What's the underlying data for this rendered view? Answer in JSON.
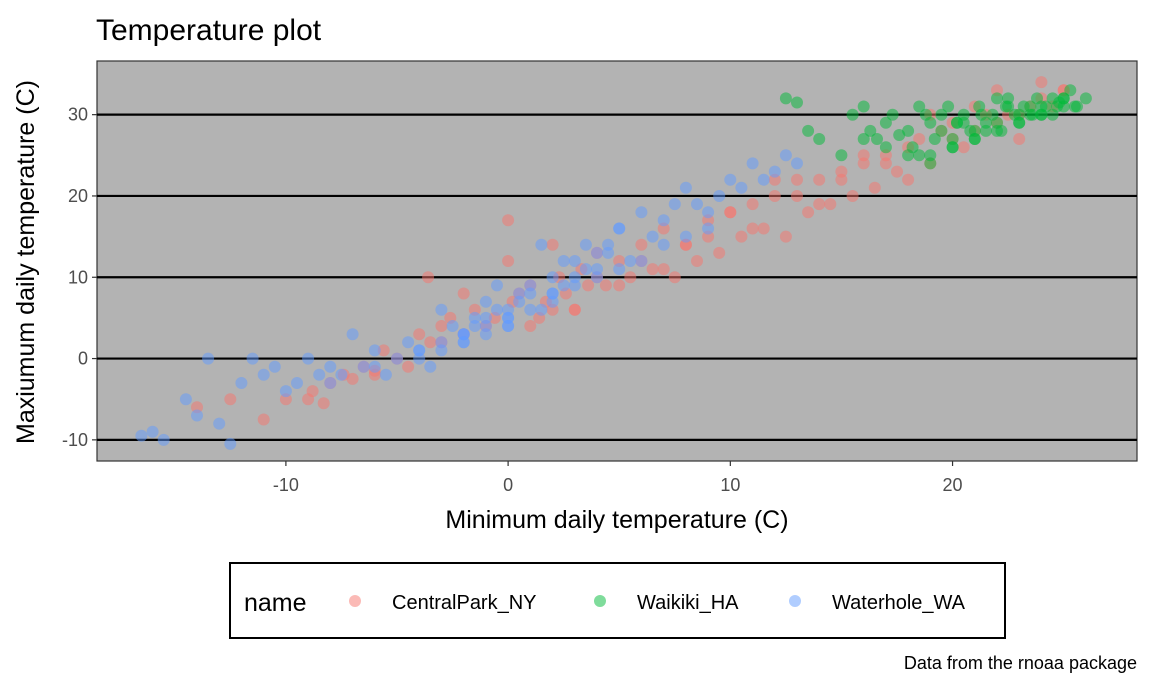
{
  "chart_data": {
    "type": "scatter",
    "title": "Temperature plot",
    "xlabel": "Minimum daily temperature (C)",
    "ylabel": "Maxiumum daily temperature (C)",
    "caption": "Data from the rnoaa package",
    "xlim": [
      -18.5,
      28.3
    ],
    "ylim": [
      -12.6,
      36.6
    ],
    "x_ticks": [
      -10,
      0,
      10,
      20
    ],
    "y_ticks": [
      -10,
      0,
      10,
      20,
      30
    ],
    "x_tick_labels": [
      "-10",
      "0",
      "10",
      "20"
    ],
    "y_tick_labels": [
      "-10",
      "0",
      "10",
      "20",
      "30"
    ],
    "grid": "horizontal major lines only",
    "panel_background": "#b3b3b3",
    "legend_position": "bottom",
    "legend": {
      "title": "name",
      "entries": [
        "CentralPark_NY",
        "Waikiki_HA",
        "Waterhole_WA"
      ]
    },
    "colors": {
      "CentralPark_NY": "#F8766D",
      "Waikiki_HA": "#00BA38",
      "Waterhole_WA": "#619CFF"
    },
    "point_alpha": 0.5,
    "series": [
      {
        "name": "CentralPark_NY",
        "x": [
          -14,
          -12.5,
          -11,
          -10,
          -8.8,
          -8.3,
          -8,
          -7.4,
          -7,
          -6.5,
          -6,
          -5.6,
          -5,
          -4.5,
          -4,
          -3.6,
          -3.5,
          -3,
          -2.6,
          -2,
          -1.5,
          -1,
          -0.6,
          0,
          0.2,
          0.5,
          1,
          1.4,
          1.7,
          2,
          2.3,
          2.6,
          3,
          3.3,
          3.6,
          4,
          4.4,
          5,
          5.5,
          6,
          6.5,
          7,
          7.5,
          8,
          8.5,
          9,
          9.5,
          10,
          10.5,
          11,
          11.5,
          12,
          12.5,
          13,
          13.5,
          14,
          14.5,
          15,
          15.5,
          16,
          16.5,
          17,
          17.5,
          18,
          18.5,
          19,
          19.5,
          20,
          20.5,
          21,
          21.5,
          22,
          22.5,
          23,
          23.5,
          24,
          24.5,
          25,
          -2,
          0,
          2,
          4,
          6,
          8,
          10,
          12,
          14,
          16,
          18,
          20,
          22,
          24,
          -9,
          -6,
          -3,
          1,
          3,
          5,
          7,
          9,
          11,
          13,
          15,
          17,
          19,
          21,
          23,
          25
        ],
        "y": [
          -6,
          -5,
          -7.5,
          -5,
          -4,
          -5.5,
          -3,
          -2,
          -2.5,
          -1,
          -1.5,
          1,
          0,
          -1,
          3,
          10,
          2,
          4,
          5,
          3,
          6,
          4,
          5,
          17,
          7,
          8,
          9,
          5,
          7,
          6,
          10,
          8,
          6,
          11,
          9,
          13,
          9,
          12,
          10,
          14,
          11,
          16,
          10,
          14,
          12,
          17,
          13,
          18,
          15,
          19,
          16,
          20,
          15,
          22,
          18,
          22,
          19,
          22,
          20,
          24,
          21,
          24,
          23,
          26,
          27,
          24,
          28,
          27,
          26,
          28,
          30,
          29,
          30,
          27,
          31,
          32,
          31,
          33,
          8,
          12,
          14,
          10,
          12,
          14,
          18,
          22,
          19,
          25,
          22,
          29,
          33,
          34,
          -5,
          -2,
          2,
          4,
          6,
          9,
          11,
          15,
          16,
          20,
          23,
          25,
          30,
          31,
          30,
          33
        ]
      },
      {
        "name": "Waikiki_HA",
        "x": [
          12.5,
          13,
          14,
          15,
          15.5,
          16,
          16.3,
          16.6,
          17,
          17.3,
          17.6,
          18,
          18.2,
          18.5,
          18.8,
          19,
          19.2,
          19.5,
          19.8,
          20,
          20.2,
          20.5,
          20.8,
          21,
          21.2,
          21.5,
          21.8,
          22,
          22.2,
          22.5,
          22.8,
          23,
          23.2,
          23.5,
          23.8,
          24,
          24.2,
          24.5,
          24.8,
          25,
          25.3,
          25.6,
          26,
          13.5,
          16,
          17,
          18,
          19,
          20,
          21,
          22,
          23,
          24,
          25,
          18.5,
          19.5,
          20.5,
          21.5,
          22.5,
          23.5,
          24.5,
          25.5,
          19,
          20,
          21,
          22,
          23,
          24,
          25,
          20.2,
          21.3,
          22.4,
          23.6,
          24.7
        ],
        "y": [
          32,
          31.5,
          27,
          25,
          30,
          31,
          28,
          27,
          29,
          30,
          27.5,
          28,
          26,
          25,
          30,
          29,
          27,
          28,
          31,
          26,
          29,
          30,
          28,
          27,
          31,
          29,
          30,
          32,
          28,
          31,
          30,
          29,
          31,
          30,
          32,
          30,
          31,
          32,
          31.5,
          32,
          33,
          31,
          32,
          28,
          27,
          26,
          25,
          24,
          27,
          28,
          29,
          30,
          31,
          32,
          31,
          30,
          29,
          28,
          32,
          31,
          30,
          31,
          25,
          26,
          27,
          28,
          29,
          30,
          31,
          29,
          30,
          31,
          30,
          31
        ]
      },
      {
        "name": "Waterhole_WA",
        "x": [
          -16.5,
          -16,
          -15.5,
          -14.5,
          -14,
          -13.5,
          -13,
          -12.5,
          -12,
          -11.5,
          -11,
          -10.5,
          -10,
          -9.5,
          -9,
          -8.5,
          -8,
          -7.5,
          -7,
          -6.5,
          -6,
          -5.5,
          -5,
          -4.5,
          -4,
          -3.5,
          -3,
          -2.5,
          -2,
          -1.5,
          -1,
          -0.5,
          0,
          0.5,
          1,
          1.5,
          2,
          2.5,
          3,
          3.5,
          4,
          4.5,
          5,
          5.5,
          6,
          6.5,
          7,
          7.5,
          8,
          8.5,
          9,
          9.5,
          10,
          10.5,
          11,
          11.5,
          12,
          12.5,
          13,
          -2,
          -1.5,
          -1,
          -0.5,
          0,
          0.5,
          1,
          1.5,
          2,
          2.5,
          3,
          3.5,
          4,
          4.5,
          5,
          -3,
          -2,
          -1,
          0,
          1,
          2,
          3,
          4,
          5,
          6,
          7,
          8,
          9,
          -4,
          -3,
          -2,
          -1,
          0,
          -8,
          -6,
          -4,
          -2,
          0,
          2
        ],
        "y": [
          -9.5,
          -9,
          -10,
          -5,
          -7,
          0,
          -8,
          -10.5,
          -3,
          0,
          -2,
          -1,
          -4,
          -3,
          0,
          -2,
          -1,
          -2,
          3,
          -1,
          1,
          -2,
          0,
          2,
          1,
          -1,
          6,
          4,
          3,
          5,
          7,
          9,
          5,
          8,
          9,
          14,
          8,
          12,
          10,
          14,
          11,
          13,
          16,
          12,
          18,
          15,
          17,
          19,
          21,
          19,
          18,
          20,
          22,
          21,
          24,
          22,
          23,
          25,
          24,
          3,
          4,
          5,
          6,
          4,
          7,
          8,
          6,
          10,
          9,
          12,
          11,
          13,
          14,
          16,
          2,
          3,
          4,
          5,
          6,
          7,
          9,
          10,
          11,
          12,
          14,
          15,
          16,
          0,
          1,
          2,
          3,
          4,
          -3,
          -1,
          1,
          2,
          6,
          8
        ]
      }
    ]
  }
}
